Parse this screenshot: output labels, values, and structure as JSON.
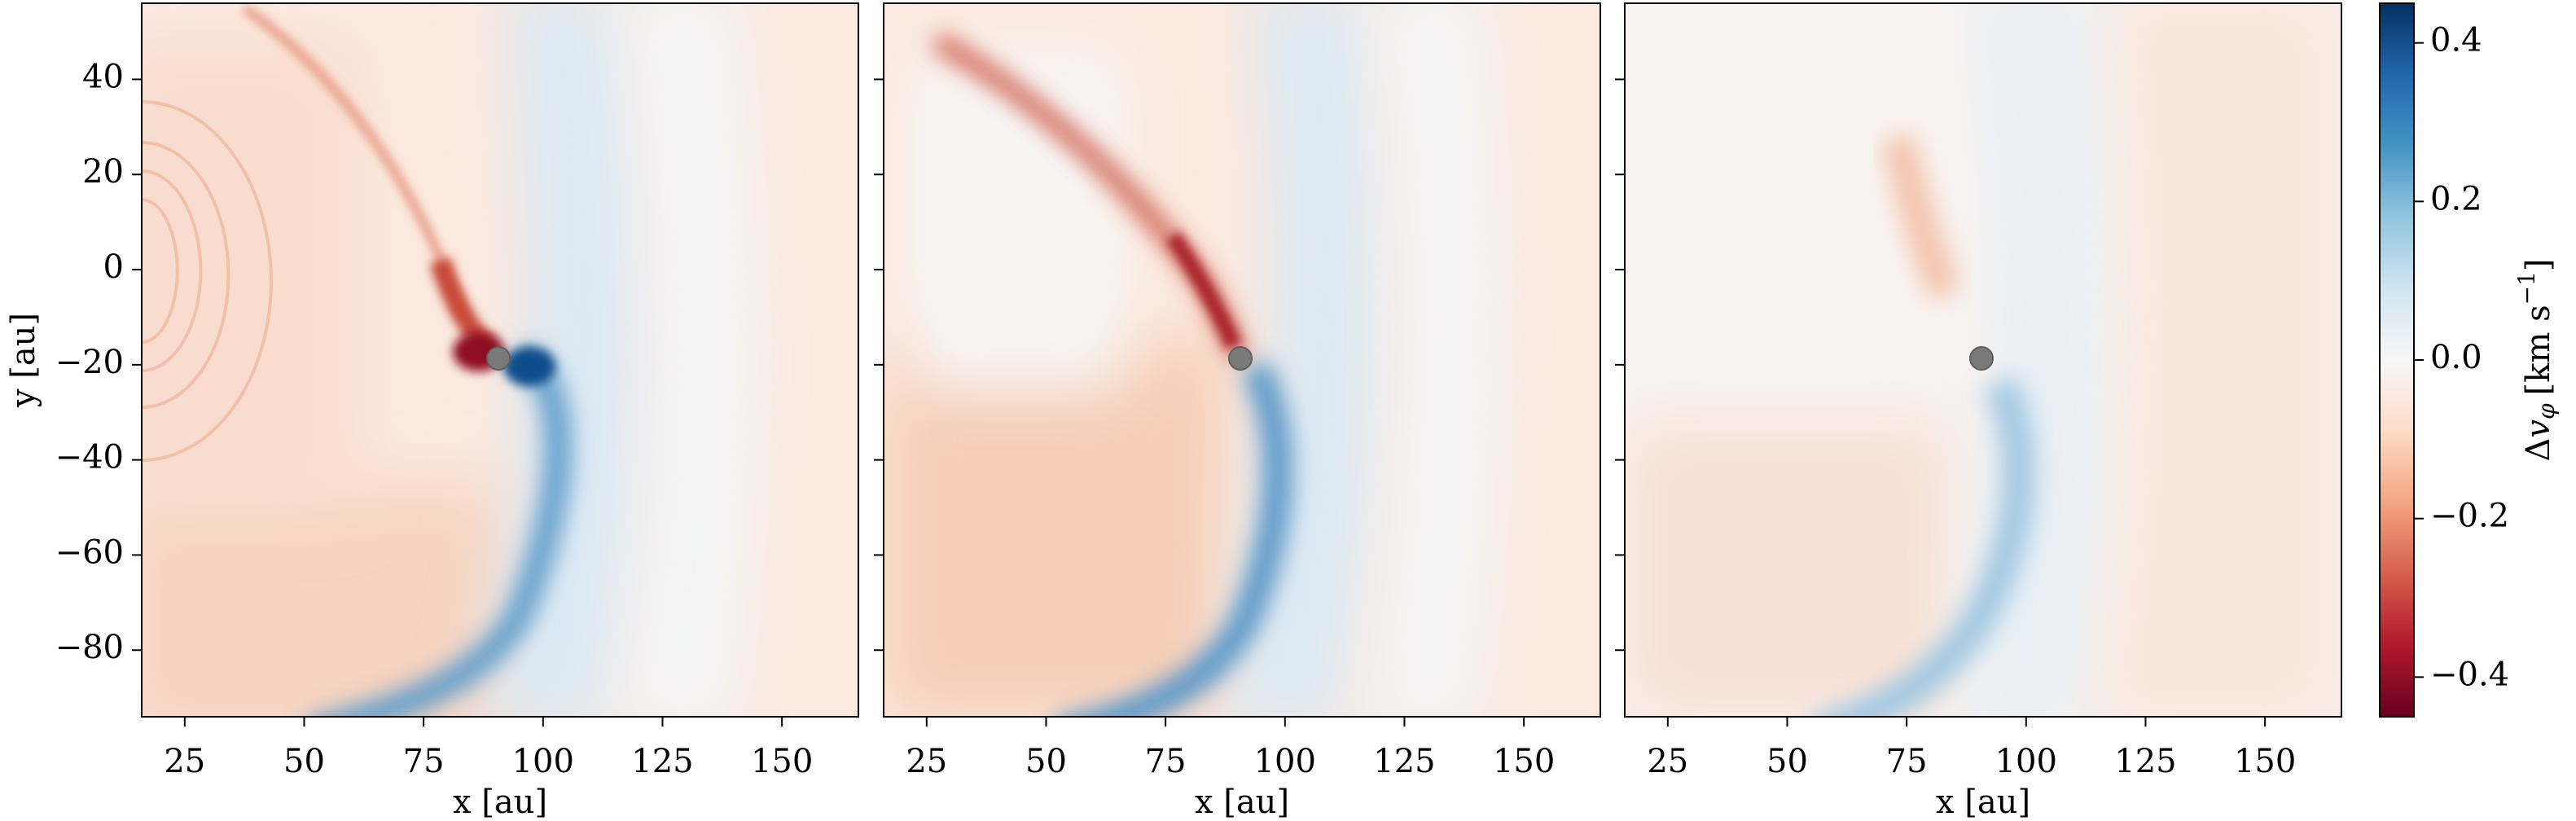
{
  "chart_data": {
    "type": "heatmap",
    "layout": "three panels sharing y axis, one shared colorbar on the right",
    "xlabel": "x [au]",
    "ylabel": "y [au]",
    "xlim": [
      16,
      166
    ],
    "ylim": [
      -94,
      56
    ],
    "x_ticks": [
      25,
      50,
      75,
      100,
      125,
      150
    ],
    "y_ticks": [
      40,
      20,
      0,
      -20,
      -40,
      -60,
      -80
    ],
    "colormap": "RdBu (red negative, blue positive)",
    "planet_marker": {
      "x": 91.5,
      "y": -18,
      "color": "#7a7a7a"
    },
    "colorbar": {
      "label": "Δv_φ [km s⁻¹]",
      "label_parts": {
        "delta": "Δ",
        "v": "v",
        "sub": "φ",
        "unit": "[km s",
        "exp": "−1",
        "close": "]"
      },
      "range": [
        -0.45,
        0.45
      ],
      "ticks": [
        0.4,
        0.2,
        0.0,
        -0.2,
        -0.4
      ],
      "tick_labels": [
        "0.4",
        "0.2",
        "0.0",
        "−0.2",
        "−0.4"
      ]
    },
    "panels": [
      {
        "id": "panel-1",
        "peak_red": -0.45,
        "peak_blue": 0.45,
        "inner_rings": true
      },
      {
        "id": "panel-2",
        "peak_red": -0.35,
        "peak_blue": 0.28,
        "inner_rings": false
      },
      {
        "id": "panel-3",
        "peak_red": -0.1,
        "peak_blue": 0.15,
        "inner_rings": false
      }
    ]
  }
}
